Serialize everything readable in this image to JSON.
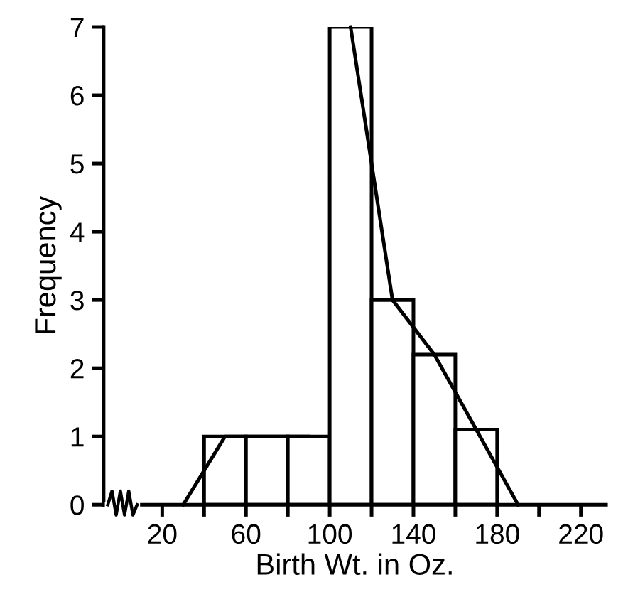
{
  "chart_data": {
    "type": "histogram",
    "xlabel": "Birth Wt. in Oz.",
    "ylabel": "Frequency",
    "series": [
      {
        "type": "histogram",
        "color": "#ffffff",
        "bins": [
          40,
          60,
          80,
          100,
          120,
          140,
          160,
          180
        ],
        "values": [
          1,
          1,
          1,
          7,
          3,
          2.2,
          1.1
        ]
      },
      {
        "type": "line",
        "color": "#000000",
        "x": [
          30,
          50,
          70,
          90
        ],
        "values": [
          0,
          1,
          1,
          1
        ]
      },
      {
        "type": "line",
        "color": "#000000",
        "x": [
          110,
          130,
          150,
          170,
          190
        ],
        "values": [
          7,
          3,
          2.2,
          1.1,
          0
        ]
      }
    ],
    "xlim": [
      -8,
      232
    ],
    "ylim": [
      0,
      7
    ],
    "xticks": [
      20,
      {
        "value": 40,
        "label": null
      },
      60,
      {
        "value": 80,
        "label": null
      },
      100,
      {
        "value": 120,
        "label": null
      },
      140,
      {
        "value": 160,
        "label": null
      },
      180,
      {
        "value": 200,
        "label": null
      },
      220
    ],
    "yticks": [
      0,
      1,
      2,
      3,
      4,
      5,
      6,
      7
    ],
    "grid": false,
    "legend": false
  }
}
